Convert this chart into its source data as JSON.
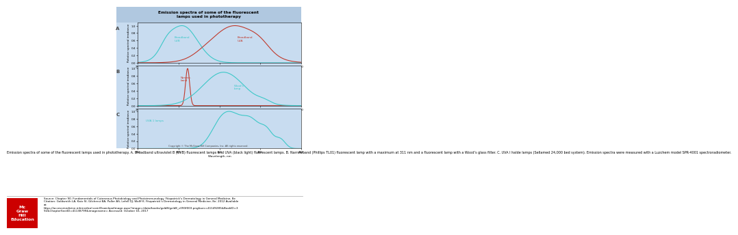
{
  "title": "Emission spectra of some of the fluorescent\nlamps used in phototherapy",
  "xlabel": "Wavelength, nm",
  "ylabel": "Relative spectral irradiance",
  "xmin": 250,
  "xmax": 450,
  "color_cyan": "#3CC8C8",
  "color_red": "#C0392B",
  "panel_bg": "#C8DCF0",
  "outer_bg": "#FFFFFF",
  "title_bg": "#B0C8E0",
  "caption": "Emission spectra of some of the fluorescent lamps used in phototherapy. A. Broadband ultraviolet B (UVB) fluorescent lamps and UVA (black light) fluorescent lamps. B. Narrowband (Phillips TL01) fluorescent lamp with a maximum at 311 nm and a fluorescent lamp with a Wood’s glass filter. C. UVA I halde lamps (Sellamed 24,000 bed system). Emission spectra were measured with a Luzchem model SPR-4001 spectroradiometer.",
  "source_text": "Source: Chapter 90. Fundamentals of Cutaneous Photobiology and Photoimmunology. Fitzpatrick’s Dermatology in General Medicine, 8e\nCitation: Goldsmith LA, Katz SI, Gilchrest BA, Paller AS, Lefell DJ, Wolff K. Fitzpatrick’s Dermatology in General Medicine, 8e; 2012 Available\nat:\nhttps://accessmedicine.mhmedical.com/DownloadImage.aspx?image=/data/books/gold8/gold8_c090f003.png&sec=41149285&BookID=3\n92&ChapterSectID=41138799&imagename= Accessed: October 16, 2017",
  "mgh_red": "#CC0000",
  "mgh_text": "Mc\nGraw\nHill\nEducation",
  "copyright_text": "Copyright © The McGraw-Hill Companies, Inc. All rights reserved.",
  "panel_labels": [
    "A",
    "B",
    "C"
  ]
}
